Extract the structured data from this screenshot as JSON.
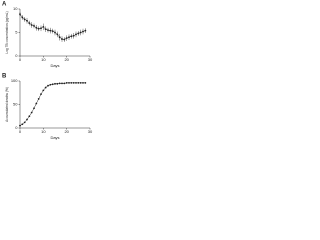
{
  "chart_data": [
    {
      "type": "line",
      "panel_label": "A",
      "y_label": "Log TB concentration (pg/mL)",
      "x_label": "Days",
      "x": [
        0,
        1,
        2,
        3,
        4,
        5,
        6,
        7,
        8,
        9,
        10,
        11,
        12,
        13,
        14,
        15,
        16,
        17,
        18,
        19,
        20,
        21,
        22,
        23,
        24,
        25,
        26,
        27,
        28
      ],
      "series": [
        {
          "name": "Log TB concentration",
          "color": "#222222",
          "values": [
            8.9,
            8.2,
            7.8,
            7.5,
            7.0,
            6.6,
            6.4,
            6.0,
            5.8,
            5.9,
            6.2,
            5.7,
            5.5,
            5.4,
            5.3,
            5.0,
            4.6,
            4.0,
            3.6,
            3.5,
            3.8,
            4.0,
            4.2,
            4.3,
            4.6,
            4.8,
            5.0,
            5.2,
            5.4
          ],
          "errors": [
            0.4,
            0.5,
            0.5,
            0.6,
            0.5,
            0.6,
            0.5,
            0.6,
            0.5,
            0.6,
            0.7,
            0.6,
            0.5,
            0.6,
            0.5,
            0.6,
            0.6,
            0.7,
            0.6,
            0.5,
            0.6,
            0.6,
            0.5,
            0.6,
            0.6,
            0.5,
            0.6,
            0.6,
            0.5
          ]
        }
      ],
      "xlim": [
        0,
        30
      ],
      "xticks": [
        0,
        10,
        20,
        30
      ],
      "ylim": [
        0,
        10
      ],
      "yticks": [
        0,
        5,
        10
      ]
    },
    {
      "type": "line",
      "panel_label": "B",
      "y_label": "Accumulated deaths (%)",
      "x_label": "Days",
      "x": [
        0,
        1,
        2,
        3,
        4,
        5,
        6,
        7,
        8,
        9,
        10,
        11,
        12,
        13,
        14,
        15,
        16,
        17,
        18,
        19,
        20,
        21,
        22,
        23,
        24,
        25,
        26,
        27,
        28
      ],
      "series": [
        {
          "name": "Accumulated deaths",
          "color": "#222222",
          "values": [
            5,
            8,
            12,
            18,
            25,
            33,
            42,
            52,
            62,
            72,
            80,
            86,
            90,
            92,
            93,
            94,
            94,
            95,
            95,
            95,
            96,
            96,
            96,
            96,
            96,
            96,
            96,
            96,
            96
          ]
        }
      ],
      "xlim": [
        0,
        30
      ],
      "xticks": [
        0,
        10,
        20,
        30
      ],
      "ylim": [
        0,
        100
      ],
      "yticks": [
        0,
        50,
        100
      ]
    }
  ]
}
